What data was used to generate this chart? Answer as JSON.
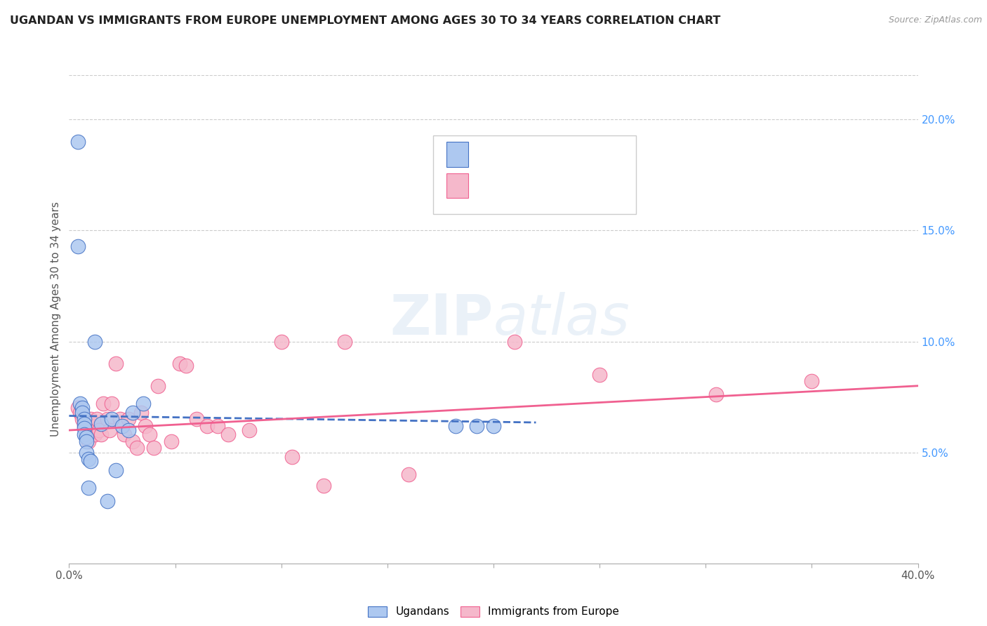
{
  "title": "UGANDAN VS IMMIGRANTS FROM EUROPE UNEMPLOYMENT AMONG AGES 30 TO 34 YEARS CORRELATION CHART",
  "source": "Source: ZipAtlas.com",
  "ylabel": "Unemployment Among Ages 30 to 34 years",
  "xlim": [
    0.0,
    0.4
  ],
  "ylim": [
    0.0,
    0.22
  ],
  "xticks": [
    0.0,
    0.05,
    0.1,
    0.15,
    0.2,
    0.25,
    0.3,
    0.35,
    0.4
  ],
  "xticklabels": [
    "0.0%",
    "",
    "",
    "",
    "",
    "",
    "",
    "",
    "40.0%"
  ],
  "yticks_right": [
    0.05,
    0.1,
    0.15,
    0.2
  ],
  "yticklabels_right": [
    "5.0%",
    "10.0%",
    "15.0%",
    "20.0%"
  ],
  "ugandan_color": "#adc8f0",
  "immigrant_color": "#f5b8cb",
  "ugandan_line_color": "#4472c4",
  "immigrant_line_color": "#f06090",
  "legend_text_color": "#4472c4",
  "legend_label_color": "#333333",
  "watermark": "ZIPatlas",
  "ugandan_x": [
    0.004,
    0.004,
    0.005,
    0.006,
    0.006,
    0.007,
    0.007,
    0.007,
    0.007,
    0.008,
    0.008,
    0.008,
    0.009,
    0.009,
    0.01,
    0.012,
    0.015,
    0.018,
    0.02,
    0.022,
    0.025,
    0.028,
    0.03,
    0.035,
    0.182,
    0.192,
    0.2
  ],
  "ugandan_y": [
    0.19,
    0.143,
    0.072,
    0.07,
    0.068,
    0.065,
    0.063,
    0.061,
    0.058,
    0.057,
    0.055,
    0.05,
    0.047,
    0.034,
    0.046,
    0.1,
    0.063,
    0.028,
    0.065,
    0.042,
    0.062,
    0.06,
    0.068,
    0.072,
    0.062,
    0.062,
    0.062
  ],
  "immigrant_x": [
    0.004,
    0.005,
    0.006,
    0.007,
    0.008,
    0.009,
    0.01,
    0.011,
    0.012,
    0.013,
    0.014,
    0.015,
    0.016,
    0.018,
    0.019,
    0.02,
    0.022,
    0.024,
    0.026,
    0.028,
    0.03,
    0.032,
    0.034,
    0.036,
    0.038,
    0.04,
    0.042,
    0.048,
    0.052,
    0.055,
    0.06,
    0.065,
    0.07,
    0.075,
    0.085,
    0.1,
    0.105,
    0.12,
    0.13,
    0.16,
    0.21,
    0.25,
    0.305,
    0.35
  ],
  "immigrant_y": [
    0.07,
    0.068,
    0.065,
    0.062,
    0.058,
    0.055,
    0.065,
    0.062,
    0.058,
    0.065,
    0.06,
    0.058,
    0.072,
    0.065,
    0.06,
    0.072,
    0.09,
    0.065,
    0.058,
    0.065,
    0.055,
    0.052,
    0.068,
    0.062,
    0.058,
    0.052,
    0.08,
    0.055,
    0.09,
    0.089,
    0.065,
    0.062,
    0.062,
    0.058,
    0.06,
    0.1,
    0.048,
    0.035,
    0.1,
    0.04,
    0.1,
    0.085,
    0.076,
    0.082
  ],
  "ugandan_trend_x": [
    0.0,
    0.22
  ],
  "ugandan_trend_y": [
    0.0665,
    0.0635
  ],
  "immigrant_trend_x": [
    0.0,
    0.4
  ],
  "immigrant_trend_y": [
    0.06,
    0.08
  ]
}
